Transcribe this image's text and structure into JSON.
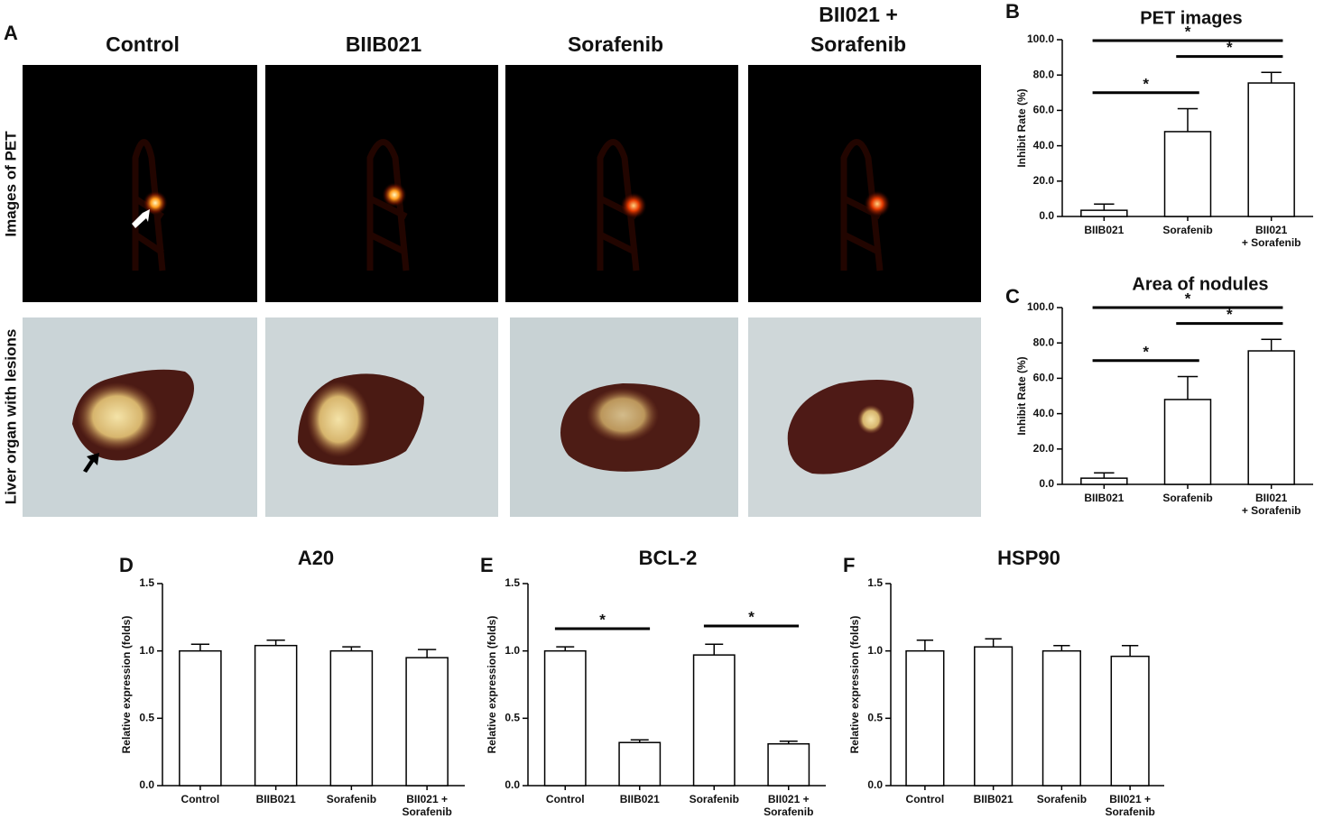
{
  "panel_a": {
    "panel": "A",
    "columns": [
      [
        "Control"
      ],
      [
        "BIIB021"
      ],
      [
        "Sorafenib"
      ],
      [
        "BII021 +",
        "Sorafenib"
      ]
    ],
    "rows": [
      "Images of PET",
      "Liver organ with lesions"
    ]
  },
  "chart_data": [
    {
      "type": "bar",
      "panel": "B",
      "title": "PET images",
      "y_label": "Inhibit Rate (%)",
      "categories": [
        [
          "BIIB021"
        ],
        [
          "Sorafenib"
        ],
        [
          "BII021",
          "+ Sorafenib"
        ]
      ],
      "values": [
        3.5,
        48,
        75.5
      ],
      "errors": [
        3.5,
        13,
        6
      ],
      "ylim": [
        0,
        100
      ],
      "yticks": [
        {
          "value": 0,
          "label": "0.0"
        },
        {
          "value": 20,
          "label": "20.0"
        },
        {
          "value": 40,
          "label": "40.0"
        },
        {
          "value": 60,
          "label": "60.0"
        },
        {
          "value": 80,
          "label": "80.0"
        },
        {
          "value": 100,
          "label": "100.0"
        }
      ],
      "significance": [
        {
          "from": 0,
          "to": 1,
          "text": "*"
        },
        {
          "from": 1,
          "to": 2,
          "text": "*"
        },
        {
          "from": 0,
          "to": 2,
          "text": "*"
        }
      ]
    },
    {
      "type": "bar",
      "panel": "C",
      "title": "Area of nodules",
      "y_label": "Inhibit Rate (%)",
      "categories": [
        [
          "BIIB021"
        ],
        [
          "Sorafenib"
        ],
        [
          "BII021",
          "+ Sorafenib"
        ]
      ],
      "values": [
        3.5,
        48,
        75.5
      ],
      "errors": [
        3,
        13,
        6.5
      ],
      "ylim": [
        0,
        100
      ],
      "yticks": [
        {
          "value": 0,
          "label": "0.0"
        },
        {
          "value": 20,
          "label": "20.0"
        },
        {
          "value": 40,
          "label": "40.0"
        },
        {
          "value": 60,
          "label": "60.0"
        },
        {
          "value": 80,
          "label": "80.0"
        },
        {
          "value": 100,
          "label": "100.0"
        }
      ],
      "significance": [
        {
          "from": 0,
          "to": 1,
          "text": "*"
        },
        {
          "from": 1,
          "to": 2,
          "text": "*"
        },
        {
          "from": 0,
          "to": 2,
          "text": "*"
        }
      ]
    },
    {
      "type": "bar",
      "panel": "D",
      "title": "A20",
      "y_label": "Relative expression (folds)",
      "categories": [
        [
          "Control"
        ],
        [
          "BIIB021"
        ],
        [
          "Sorafenib"
        ],
        [
          "BII021 +",
          "Sorafenib"
        ]
      ],
      "values": [
        1.0,
        1.04,
        1.0,
        0.95
      ],
      "errors": [
        0.05,
        0.04,
        0.03,
        0.06
      ],
      "ylim": [
        0,
        1.5
      ],
      "yticks": [
        {
          "value": 0,
          "label": "0.0"
        },
        {
          "value": 0.5,
          "label": "0.5"
        },
        {
          "value": 1,
          "label": "1.0"
        },
        {
          "value": 1.5,
          "label": "1.5"
        }
      ],
      "significance": []
    },
    {
      "type": "bar",
      "panel": "E",
      "title": "BCL-2",
      "y_label": "Relative expression (folds)",
      "categories": [
        [
          "Control"
        ],
        [
          "BIIB021"
        ],
        [
          "Sorafenib"
        ],
        [
          "BII021 +",
          "Sorafenib"
        ]
      ],
      "values": [
        1.0,
        0.32,
        0.97,
        0.31
      ],
      "errors": [
        0.03,
        0.02,
        0.08,
        0.02
      ],
      "ylim": [
        0,
        1.5
      ],
      "yticks": [
        {
          "value": 0,
          "label": "0.0"
        },
        {
          "value": 0.5,
          "label": "0.5"
        },
        {
          "value": 1,
          "label": "1.0"
        },
        {
          "value": 1.5,
          "label": "1.5"
        }
      ],
      "significance": [
        {
          "from": 0,
          "to": 1,
          "text": "*"
        },
        {
          "from": 2,
          "to": 3,
          "text": "*"
        }
      ]
    },
    {
      "type": "bar",
      "panel": "F",
      "title": "HSP90",
      "y_label": "Relative expression (folds)",
      "categories": [
        [
          "Control"
        ],
        [
          "BIIB021"
        ],
        [
          "Sorafenib"
        ],
        [
          "BII021 +",
          "Sorafenib"
        ]
      ],
      "values": [
        1.0,
        1.03,
        1.0,
        0.96
      ],
      "errors": [
        0.08,
        0.06,
        0.04,
        0.08
      ],
      "ylim": [
        0,
        1.5
      ],
      "yticks": [
        {
          "value": 0,
          "label": "0.0"
        },
        {
          "value": 0.5,
          "label": "0.5"
        },
        {
          "value": 1,
          "label": "1.0"
        },
        {
          "value": 1.5,
          "label": "1.5"
        }
      ],
      "significance": []
    }
  ]
}
